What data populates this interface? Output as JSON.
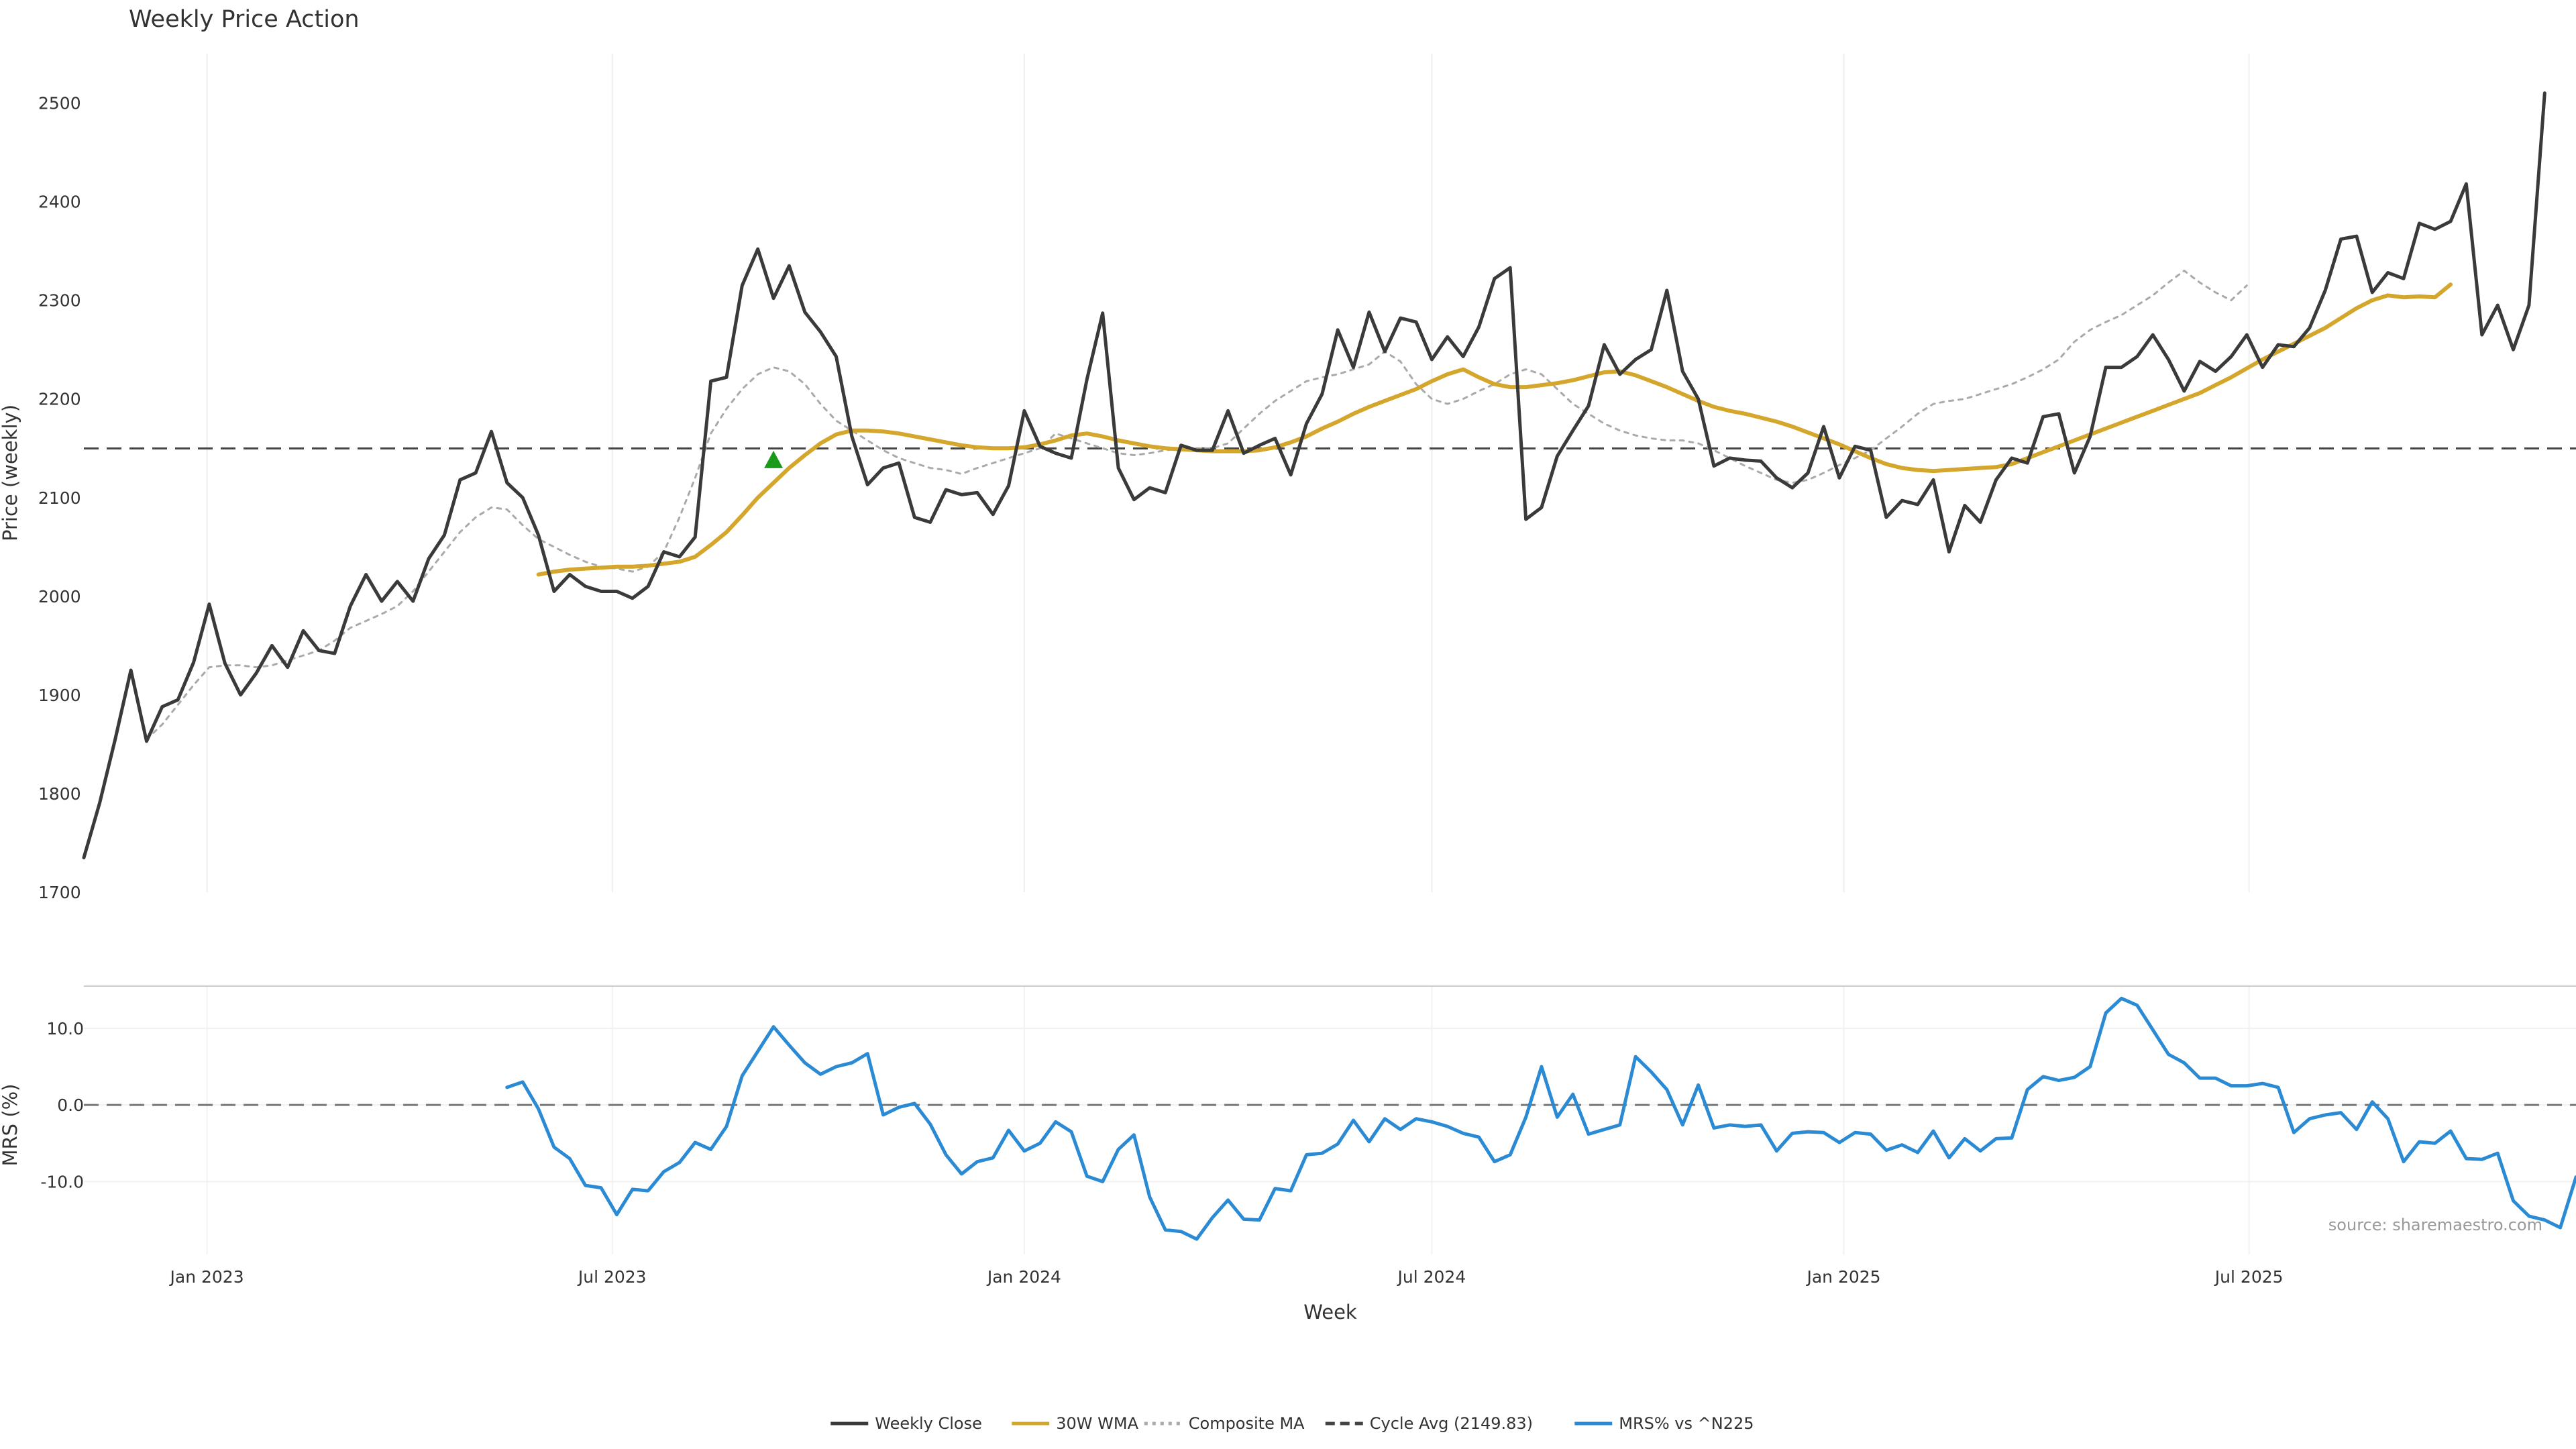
{
  "chart_data": {
    "type": "line",
    "title": "Weekly Price Action",
    "price_panel": {
      "ylabel": "Price (weekly)",
      "ylim": [
        1700,
        2550
      ],
      "yticks": [
        "1700",
        "1800",
        "1900",
        "2000",
        "2100",
        "2200",
        "2300",
        "2400",
        "2500"
      ],
      "reference_line": {
        "name": "Cycle Avg (2149.83)",
        "value": 2149.83
      },
      "marker": {
        "type": "triangle-up",
        "color": "#1a9a1a",
        "x": "2023-09-11",
        "y": 2138
      },
      "series": [
        {
          "name": "Weekly Close",
          "color": "#3a3a3a",
          "style": "solid",
          "x_start": "2022-11-07",
          "x_step_days": 7,
          "values": [
            1735,
            1790,
            1855,
            1925,
            1853,
            1888,
            1895,
            1933,
            1992,
            1932,
            1900,
            1922,
            1950,
            1928,
            1965,
            1945,
            1942,
            1990,
            2022,
            1995,
            2015,
            1995,
            2038,
            2062,
            2118,
            2125,
            2167,
            2115,
            2100,
            2062,
            2005,
            2022,
            2010,
            2005,
            2005,
            1998,
            2010,
            2045,
            2040,
            2060,
            2218,
            2222,
            2315,
            2352,
            2302,
            2335,
            2288,
            2268,
            2243,
            2162,
            2113,
            2130,
            2135,
            2080,
            2075,
            2108,
            2103,
            2105,
            2083,
            2112,
            2188,
            2152,
            2145,
            2140,
            2220,
            2287,
            2130,
            2098,
            2110,
            2105,
            2153,
            2148,
            2148,
            2188,
            2145,
            2153,
            2160,
            2123,
            2175,
            2205,
            2270,
            2232,
            2288,
            2248,
            2282,
            2278,
            2240,
            2263,
            2243,
            2273,
            2322,
            2333,
            2078,
            2090,
            2142,
            2168,
            2193,
            2255,
            2225,
            2240,
            2250,
            2310,
            2228,
            2200,
            2132,
            2140,
            2138,
            2137,
            2120,
            2110,
            2125,
            2172,
            2120,
            2152,
            2148,
            2080,
            2097,
            2093,
            2118,
            2045,
            2092,
            2075,
            2118,
            2140,
            2135,
            2182,
            2185,
            2125,
            2162,
            2232,
            2232,
            2243,
            2265,
            2240,
            2208,
            2238,
            2228,
            2243,
            2265,
            2232,
            2255,
            2253,
            2272,
            2310,
            2362,
            2365,
            2308,
            2328,
            2322,
            2378,
            2372,
            2380,
            2418,
            2265,
            2295,
            2250,
            2295,
            2510
          ]
        },
        {
          "name": "30W WMA",
          "color": "#d4a72c",
          "style": "solid",
          "x_start": "2023-05-29",
          "x_step_days": 7,
          "values": [
            2022,
            2025,
            2027,
            2028,
            2029,
            2030,
            2030,
            2031,
            2033,
            2035,
            2040,
            2052,
            2065,
            2082,
            2100,
            2115,
            2130,
            2143,
            2155,
            2164,
            2168,
            2168,
            2167,
            2165,
            2162,
            2159,
            2156,
            2153,
            2151,
            2150,
            2150,
            2151,
            2154,
            2158,
            2163,
            2165,
            2162,
            2158,
            2155,
            2152,
            2150,
            2149,
            2148,
            2147,
            2147,
            2147,
            2148,
            2151,
            2156,
            2162,
            2170,
            2177,
            2185,
            2192,
            2198,
            2204,
            2210,
            2218,
            2225,
            2230,
            2222,
            2215,
            2212,
            2212,
            2214,
            2216,
            2219,
            2223,
            2227,
            2228,
            2224,
            2218,
            2212,
            2205,
            2198,
            2192,
            2188,
            2185,
            2181,
            2177,
            2172,
            2166,
            2160,
            2154,
            2147,
            2140,
            2134,
            2130,
            2128,
            2127,
            2128,
            2129,
            2130,
            2131,
            2134,
            2140,
            2146,
            2152,
            2158,
            2164,
            2170,
            2176,
            2182,
            2188,
            2194,
            2200,
            2206,
            2214,
            2222,
            2231,
            2240,
            2248,
            2256,
            2264,
            2272,
            2282,
            2292,
            2300,
            2305,
            2303,
            2304,
            2303,
            2316
          ]
        },
        {
          "name": "Composite MA",
          "color": "#aaaaaa",
          "style": "dotted",
          "x_start": "2022-12-05",
          "x_step_days": 7,
          "values": [
            1855,
            1870,
            1890,
            1910,
            1928,
            1930,
            1930,
            1928,
            1930,
            1935,
            1940,
            1945,
            1955,
            1968,
            1975,
            1982,
            1990,
            2005,
            2025,
            2045,
            2065,
            2080,
            2090,
            2088,
            2072,
            2058,
            2050,
            2042,
            2035,
            2030,
            2028,
            2025,
            2030,
            2045,
            2080,
            2120,
            2165,
            2190,
            2210,
            2225,
            2232,
            2228,
            2215,
            2195,
            2178,
            2168,
            2158,
            2148,
            2140,
            2135,
            2130,
            2128,
            2124,
            2130,
            2135,
            2140,
            2145,
            2150,
            2165,
            2160,
            2155,
            2150,
            2145,
            2143,
            2145,
            2148,
            2150,
            2150,
            2150,
            2155,
            2170,
            2185,
            2198,
            2208,
            2218,
            2222,
            2225,
            2230,
            2235,
            2248,
            2238,
            2215,
            2200,
            2195,
            2200,
            2208,
            2215,
            2225,
            2230,
            2225,
            2210,
            2195,
            2185,
            2175,
            2168,
            2163,
            2160,
            2158,
            2158,
            2155,
            2148,
            2140,
            2132,
            2125,
            2118,
            2115,
            2118,
            2125,
            2133,
            2140,
            2148,
            2160,
            2172,
            2185,
            2195,
            2198,
            2200,
            2205,
            2210,
            2215,
            2222,
            2230,
            2240,
            2258,
            2270,
            2278,
            2285,
            2295,
            2305,
            2318,
            2330,
            2318,
            2308,
            2300,
            2315
          ]
        }
      ]
    },
    "mrs_panel": {
      "ylabel": "MRS (%)",
      "ylim": [
        -19.5,
        15.5
      ],
      "yticks": [
        "-10.0",
        "0.0",
        "10.0"
      ],
      "reference_line": {
        "value": 0
      },
      "x_start": "2023-05-15",
      "x_step_days": 7,
      "series": [
        {
          "name": "MRS% vs ^N225",
          "color": "#2a8ad4",
          "style": "solid",
          "values": [
            2.3,
            3.0,
            -0.5,
            -5.5,
            -7.0,
            -10.5,
            -10.8,
            -14.3,
            -11.0,
            -11.2,
            -8.7,
            -7.5,
            -4.9,
            -5.8,
            -2.8,
            3.8,
            7.0,
            10.2,
            7.8,
            5.5,
            4.0,
            5.0,
            5.5,
            6.7,
            -1.3,
            -0.3,
            0.2,
            -2.5,
            -6.5,
            -9.0,
            -7.4,
            -6.9,
            -3.3,
            -6.0,
            -5.0,
            -2.2,
            -3.5,
            -9.3,
            -10.0,
            -5.8,
            -3.9,
            -12.0,
            -16.3,
            -16.5,
            -17.5,
            -14.7,
            -12.4,
            -14.9,
            -15.0,
            -10.9,
            -11.2,
            -6.5,
            -6.3,
            -5.1,
            -2.0,
            -4.8,
            -1.8,
            -3.2,
            -1.8,
            -2.2,
            -2.8,
            -3.7,
            -4.2,
            -7.4,
            -6.5,
            -1.6,
            5.0,
            -1.6,
            1.4,
            -3.8,
            -3.2,
            -2.6,
            6.3,
            4.3,
            2.0,
            -2.6,
            2.6,
            -3.0,
            -2.6,
            -2.8,
            -2.6,
            -6.0,
            -3.7,
            -3.5,
            -3.6,
            -4.9,
            -3.6,
            -3.8,
            -5.9,
            -5.2,
            -6.2,
            -3.4,
            -6.9,
            -4.4,
            -6.0,
            -4.4,
            -4.3,
            2.0,
            3.7,
            3.2,
            3.6,
            5.0,
            12.0,
            13.9,
            13.0,
            9.8,
            6.6,
            5.5,
            3.5,
            3.5,
            2.5,
            2.5,
            2.8,
            2.3,
            -3.6,
            -1.8,
            -1.3,
            -1.0,
            -3.2,
            0.4,
            -1.8,
            -7.4,
            -4.8,
            -5.0,
            -3.4,
            -7.0,
            -7.1,
            -6.3,
            -12.5,
            -14.5,
            -15.0,
            -16.0,
            -9.4
          ]
        }
      ]
    },
    "xlabel": "Week",
    "xaxis": {
      "ticks": [
        {
          "label": "Jan 2023",
          "date": "2023-01-01"
        },
        {
          "label": "Jul 2023",
          "date": "2023-07-01"
        },
        {
          "label": "Jan 2024",
          "date": "2024-01-01"
        },
        {
          "label": "Jul 2024",
          "date": "2024-07-01"
        },
        {
          "label": "Jan 2025",
          "date": "2025-01-01"
        },
        {
          "label": "Jul 2025",
          "date": "2025-07-01"
        }
      ],
      "range": [
        "2022-11-07",
        "2025-11-24"
      ],
      "grid": true
    },
    "legend": {
      "placement": "bottom-center",
      "items": [
        {
          "label": "Weekly Close",
          "color": "#3a3a3a",
          "style": "solid"
        },
        {
          "label": "30W WMA",
          "color": "#d4a72c",
          "style": "solid"
        },
        {
          "label": "Composite MA",
          "color": "#aaaaaa",
          "style": "dotted"
        },
        {
          "label": "Cycle Avg (2149.83)",
          "color": "#444444",
          "style": "dashed"
        },
        {
          "label": "MRS% vs ^N225",
          "color": "#2a8ad4",
          "style": "solid"
        }
      ]
    },
    "source": "source: sharemaestro.com"
  }
}
